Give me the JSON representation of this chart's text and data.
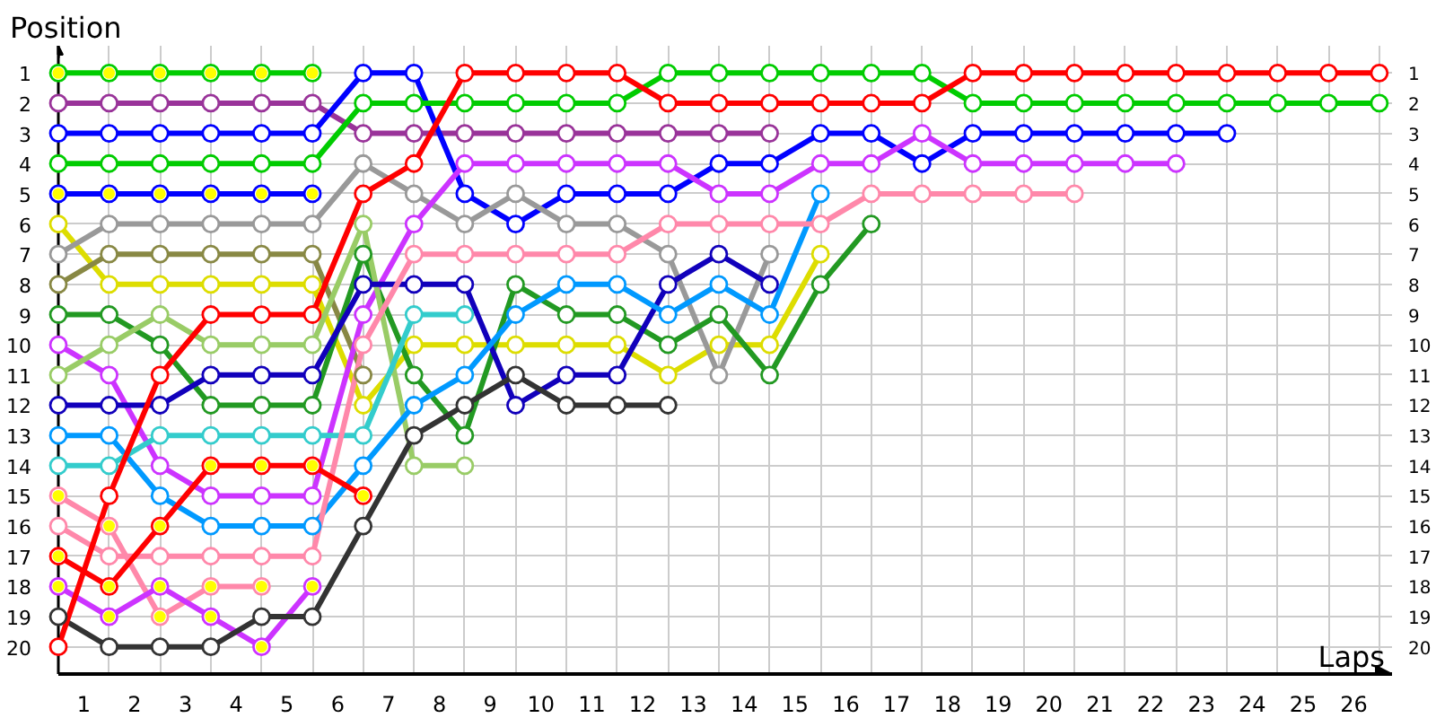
{
  "chart_data": {
    "type": "line",
    "xlabel": "Laps",
    "ylabel": "Position",
    "grid": true,
    "marker": "circle",
    "x": [
      0,
      1,
      2,
      3,
      4,
      5,
      6,
      7,
      8,
      9,
      10,
      11,
      12,
      13,
      14,
      15,
      16,
      17,
      18,
      19,
      20,
      21,
      22,
      23,
      24,
      25,
      26
    ],
    "xlim": [
      0,
      26.25
    ],
    "xticks": [
      {
        "value": 0.5,
        "label": "1"
      },
      {
        "value": 1,
        "label": null
      },
      {
        "value": 1.5,
        "label": "2"
      },
      {
        "value": 2,
        "label": null
      },
      {
        "value": 2.5,
        "label": "3"
      },
      {
        "value": 3,
        "label": null
      },
      {
        "value": 3.5,
        "label": "4"
      },
      {
        "value": 4,
        "label": null
      },
      {
        "value": 4.5,
        "label": "5"
      },
      {
        "value": 5,
        "label": null
      },
      {
        "value": 5.5,
        "label": "6"
      },
      {
        "value": 6,
        "label": null
      },
      {
        "value": 6.5,
        "label": "7"
      },
      {
        "value": 7,
        "label": null
      },
      {
        "value": 7.5,
        "label": "8"
      },
      {
        "value": 8,
        "label": null
      },
      {
        "value": 8.5,
        "label": "9"
      },
      {
        "value": 9,
        "label": null
      },
      {
        "value": 9.5,
        "label": "10"
      },
      {
        "value": 10,
        "label": null
      },
      {
        "value": 10.5,
        "label": "11"
      },
      {
        "value": 11,
        "label": null
      },
      {
        "value": 11.5,
        "label": "12"
      },
      {
        "value": 12,
        "label": null
      },
      {
        "value": 12.5,
        "label": "13"
      },
      {
        "value": 13,
        "label": null
      },
      {
        "value": 13.5,
        "label": "14"
      },
      {
        "value": 14,
        "label": null
      },
      {
        "value": 14.5,
        "label": "15"
      },
      {
        "value": 15,
        "label": null
      },
      {
        "value": 15.5,
        "label": "16"
      },
      {
        "value": 16,
        "label": null
      },
      {
        "value": 16.5,
        "label": "17"
      },
      {
        "value": 17,
        "label": null
      },
      {
        "value": 17.5,
        "label": "18"
      },
      {
        "value": 18,
        "label": null
      },
      {
        "value": 18.5,
        "label": "19"
      },
      {
        "value": 19,
        "label": null
      },
      {
        "value": 19.5,
        "label": "20"
      },
      {
        "value": 20,
        "label": null
      },
      {
        "value": 20.5,
        "label": "21"
      },
      {
        "value": 21,
        "label": null
      },
      {
        "value": 21.5,
        "label": "22"
      },
      {
        "value": 22,
        "label": null
      },
      {
        "value": 22.5,
        "label": "23"
      },
      {
        "value": 23,
        "label": null
      },
      {
        "value": 23.5,
        "label": "24"
      },
      {
        "value": 24,
        "label": null
      },
      {
        "value": 24.5,
        "label": "25"
      },
      {
        "value": 25,
        "label": null
      },
      {
        "value": 25.5,
        "label": "26"
      },
      {
        "value": 26,
        "label": null
      }
    ],
    "ylim": [
      20.9,
      0.1
    ],
    "yticks": [
      1,
      2,
      3,
      4,
      5,
      6,
      7,
      8,
      9,
      10,
      11,
      12,
      13,
      14,
      15,
      16,
      17,
      18,
      19,
      20
    ],
    "y2lim": [
      20.9,
      0.1
    ],
    "y2ticks": [
      1,
      2,
      3,
      4,
      5,
      6,
      7,
      8,
      9,
      10,
      11,
      12,
      13,
      14,
      15,
      16,
      17,
      18,
      19,
      20
    ],
    "series": [
      {
        "color": "#00cc00",
        "values": [
          1,
          1,
          1,
          1,
          1,
          1,
          null,
          null,
          null,
          null,
          null,
          null,
          null,
          null,
          null,
          null,
          null,
          null,
          null,
          null,
          null,
          null,
          null,
          null,
          null,
          null,
          null
        ]
      },
      {
        "color": "#993399",
        "values": [
          2,
          2,
          2,
          2,
          2,
          2,
          3,
          3,
          3,
          3,
          3,
          3,
          3,
          3,
          3,
          null,
          null,
          null,
          null,
          null,
          null,
          null,
          null,
          null,
          null,
          null,
          null
        ]
      },
      {
        "color": "#0000ff",
        "values": [
          3,
          3,
          3,
          3,
          3,
          3,
          1,
          1,
          5,
          6,
          5,
          5,
          5,
          4,
          4,
          3,
          3,
          4,
          3,
          3,
          3,
          3,
          3,
          3,
          null,
          null,
          null
        ]
      },
      {
        "color": "#00cc00",
        "values": [
          4,
          4,
          4,
          4,
          4,
          4,
          2,
          2,
          2,
          2,
          2,
          2,
          1,
          1,
          1,
          1,
          1,
          1,
          2,
          2,
          2,
          2,
          2,
          2,
          2,
          2,
          2
        ]
      },
      {
        "color": "#0000ff",
        "values": [
          5,
          5,
          5,
          5,
          5,
          5,
          null,
          null,
          null,
          null,
          null,
          null,
          null,
          null,
          null,
          null,
          null,
          null,
          null,
          null,
          null,
          null,
          null,
          null,
          null,
          null,
          null
        ]
      },
      {
        "color": "#dddd00",
        "values": [
          6,
          8,
          8,
          8,
          8,
          8,
          12,
          10,
          10,
          10,
          10,
          10,
          11,
          10,
          10,
          7,
          null,
          null,
          null,
          null,
          null,
          null,
          null,
          null,
          null,
          null,
          null
        ]
      },
      {
        "color": "#999999",
        "values": [
          7,
          6,
          6,
          6,
          6,
          6,
          4,
          5,
          6,
          5,
          6,
          6,
          7,
          11,
          7,
          null,
          null,
          null,
          null,
          null,
          null,
          null,
          null,
          null,
          null,
          null,
          null
        ]
      },
      {
        "color": "#888844",
        "values": [
          8,
          7,
          7,
          7,
          7,
          7,
          11,
          null,
          null,
          null,
          null,
          null,
          null,
          null,
          null,
          null,
          null,
          null,
          null,
          null,
          null,
          null,
          null,
          null,
          null,
          null,
          null
        ]
      },
      {
        "color": "#229922",
        "values": [
          9,
          9,
          10,
          12,
          12,
          12,
          7,
          11,
          13,
          8,
          9,
          9,
          10,
          9,
          11,
          8,
          6,
          null,
          null,
          null,
          null,
          null,
          null,
          null,
          null,
          null,
          null
        ]
      },
      {
        "color": "#cc33ff",
        "values": [
          10,
          11,
          14,
          15,
          15,
          15,
          9,
          6,
          4,
          4,
          4,
          4,
          4,
          5,
          5,
          4,
          4,
          3,
          4,
          4,
          4,
          4,
          4,
          null,
          null,
          null,
          null
        ]
      },
      {
        "color": "#99cc66",
        "values": [
          11,
          10,
          9,
          10,
          10,
          10,
          6,
          14,
          14,
          null,
          null,
          null,
          null,
          null,
          null,
          null,
          null,
          null,
          null,
          null,
          null,
          null,
          null,
          null,
          null,
          null,
          null
        ]
      },
      {
        "color": "#1100bb",
        "values": [
          12,
          12,
          12,
          11,
          11,
          11,
          8,
          8,
          8,
          12,
          11,
          11,
          8,
          7,
          8,
          null,
          null,
          null,
          null,
          null,
          null,
          null,
          null,
          null,
          null,
          null,
          null
        ]
      },
      {
        "color": "#0099ff",
        "values": [
          13,
          13,
          15,
          16,
          16,
          16,
          14,
          12,
          11,
          9,
          8,
          8,
          9,
          8,
          9,
          5,
          null,
          null,
          null,
          null,
          null,
          null,
          null,
          null,
          null,
          null,
          null
        ]
      },
      {
        "color": "#33cccc",
        "values": [
          14,
          14,
          13,
          13,
          13,
          13,
          13,
          9,
          9,
          null,
          null,
          null,
          null,
          null,
          null,
          null,
          null,
          null,
          null,
          null,
          null,
          null,
          null,
          null,
          null,
          null,
          null
        ]
      },
      {
        "color": "#ff88aa",
        "values": [
          15,
          16,
          19,
          18,
          18,
          null,
          null,
          null,
          null,
          null,
          null,
          null,
          null,
          null,
          null,
          null,
          null,
          null,
          null,
          null,
          null,
          null,
          null,
          null,
          null,
          null,
          null
        ]
      },
      {
        "color": "#ff88aa",
        "values": [
          16,
          17,
          17,
          17,
          17,
          17,
          10,
          7,
          7,
          7,
          7,
          7,
          6,
          6,
          6,
          6,
          5,
          5,
          5,
          5,
          5,
          null,
          null,
          null,
          null,
          null,
          null
        ]
      },
      {
        "color": "#ff0000",
        "values": [
          17,
          18,
          16,
          14,
          14,
          14,
          15,
          null,
          null,
          null,
          null,
          null,
          null,
          null,
          null,
          null,
          null,
          null,
          null,
          null,
          null,
          null,
          null,
          null,
          null,
          null,
          null
        ]
      },
      {
        "color": "#cc33ff",
        "values": [
          18,
          19,
          18,
          19,
          20,
          18,
          null,
          null,
          null,
          null,
          null,
          null,
          null,
          null,
          null,
          null,
          null,
          null,
          null,
          null,
          null,
          null,
          null,
          null,
          null,
          null,
          null
        ]
      },
      {
        "color": "#333333",
        "values": [
          19,
          20,
          20,
          20,
          19,
          19,
          16,
          13,
          12,
          11,
          12,
          12,
          12,
          null,
          null,
          null,
          null,
          null,
          null,
          null,
          null,
          null,
          null,
          null,
          null,
          null,
          null
        ]
      },
      {
        "color": "#ff0000",
        "values": [
          20,
          15,
          11,
          9,
          9,
          9,
          5,
          4,
          1,
          1,
          1,
          1,
          2,
          2,
          2,
          2,
          2,
          2,
          1,
          1,
          1,
          1,
          1,
          1,
          1,
          1,
          1
        ]
      },
      {
        "type": "scatter",
        "color": "#ffff00",
        "x": [
          0,
          1,
          2,
          3,
          4,
          5,
          0,
          1,
          2,
          3,
          4,
          5,
          0,
          1,
          2,
          3,
          4,
          0,
          1,
          2,
          3,
          4,
          5,
          6,
          0,
          1,
          2,
          3,
          4,
          5
        ],
        "values": [
          1,
          1,
          1,
          1,
          1,
          1,
          5,
          5,
          5,
          5,
          5,
          5,
          15,
          16,
          19,
          18,
          18,
          17,
          18,
          16,
          14,
          14,
          14,
          15,
          18,
          19,
          18,
          19,
          20,
          18
        ]
      }
    ]
  }
}
